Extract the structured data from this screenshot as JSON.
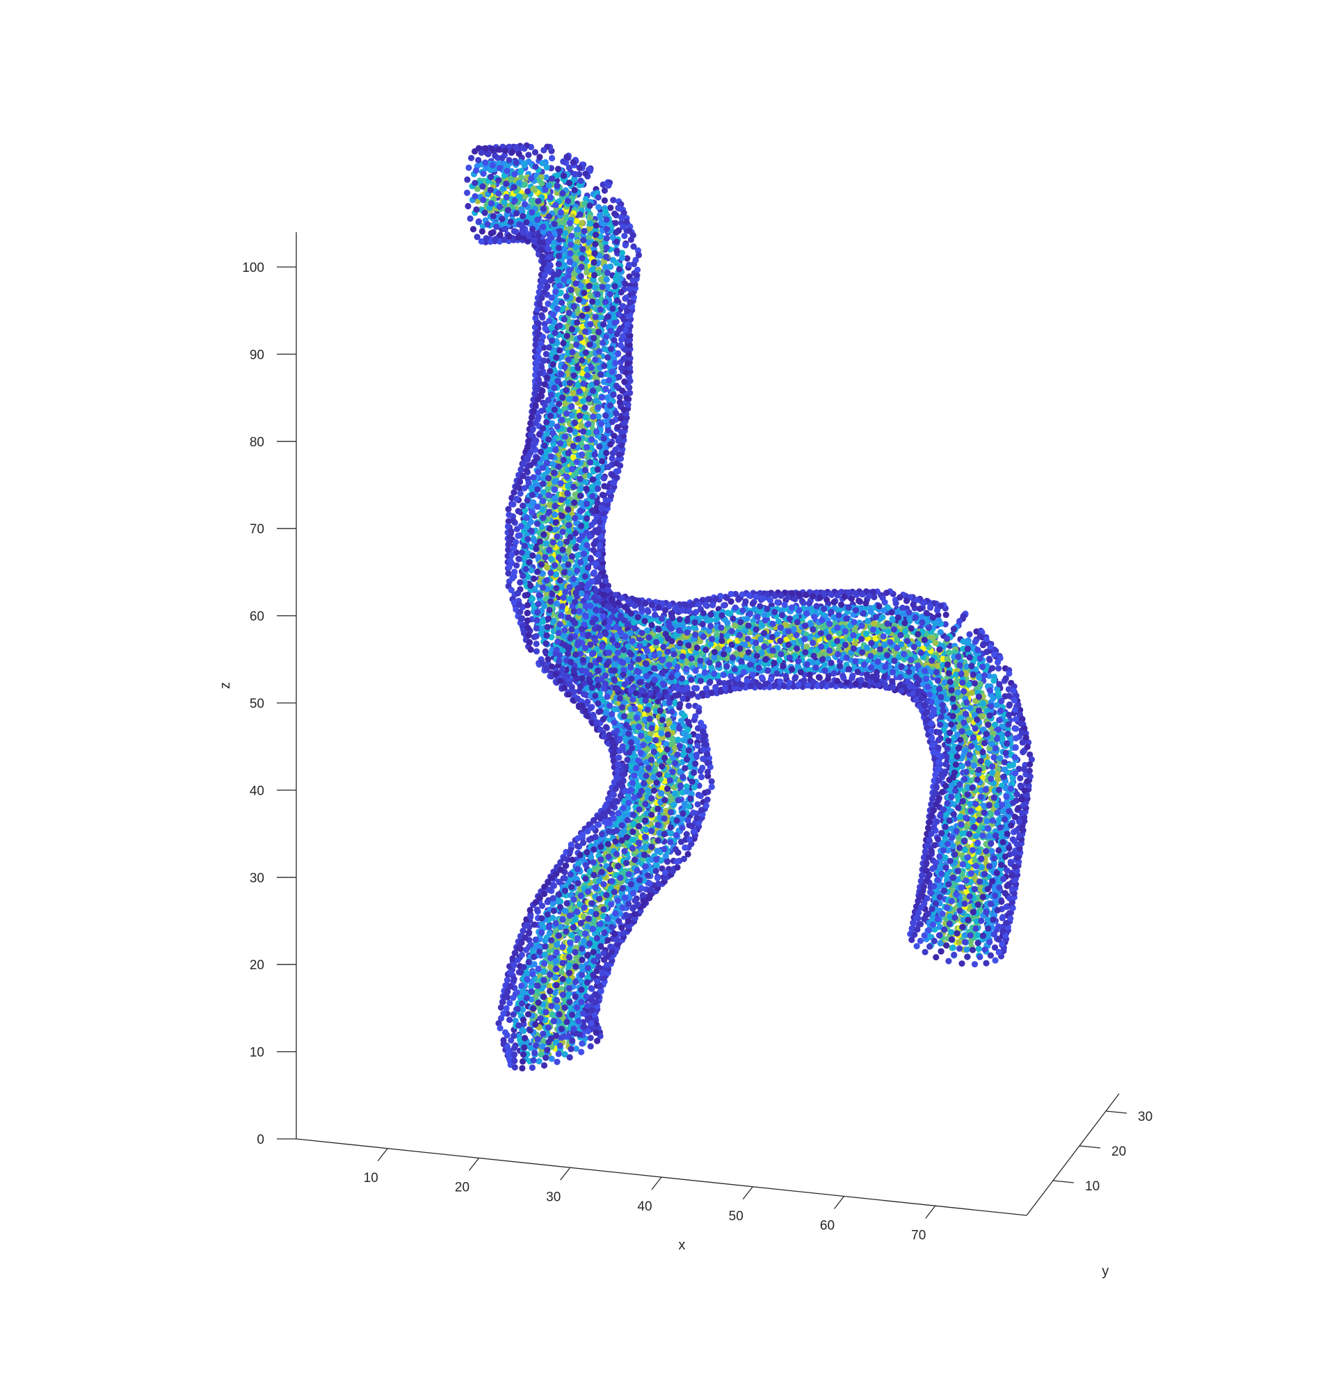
{
  "chart_data": {
    "type": "scatter",
    "projection": "3d",
    "title": "",
    "xlabel": "x",
    "ylabel": "y",
    "zlabel": "z",
    "x_ticks": [
      10,
      20,
      30,
      40,
      50,
      60,
      70
    ],
    "y_ticks": [
      10,
      20,
      30
    ],
    "z_ticks": [
      0,
      10,
      20,
      30,
      40,
      50,
      60,
      70,
      80,
      90,
      100
    ],
    "xlim": [
      0,
      80
    ],
    "ylim": [
      0,
      35
    ],
    "zlim": [
      0,
      104
    ],
    "grid": false,
    "legend": "none",
    "colormap": [
      "#3e26a8",
      "#4353f0",
      "#2f86f9",
      "#15b6d2",
      "#3fc39b",
      "#c9c128",
      "#f9fb15"
    ],
    "tube_radius": 5,
    "branches": [
      {
        "name": "",
        "centerline": [
          [
            14,
            22,
            101
          ],
          [
            20,
            22,
            102
          ],
          [
            24,
            22,
            100
          ],
          [
            26,
            22,
            95
          ],
          [
            25,
            22,
            88
          ],
          [
            25,
            22,
            80
          ],
          [
            24,
            22,
            72
          ],
          [
            22,
            22,
            65
          ],
          [
            22,
            22,
            58
          ],
          [
            24,
            22,
            52
          ]
        ]
      },
      {
        "name": "",
        "centerline": [
          [
            24,
            22,
            52
          ],
          [
            30,
            22,
            51
          ],
          [
            36,
            22,
            51
          ],
          [
            42,
            22,
            53
          ],
          [
            50,
            22,
            54
          ],
          [
            58,
            22,
            55
          ],
          [
            64,
            22,
            54
          ],
          [
            67,
            22,
            50
          ],
          [
            69,
            22,
            42
          ],
          [
            68,
            22,
            34
          ],
          [
            67,
            22,
            26
          ],
          [
            66,
            22,
            21
          ]
        ]
      },
      {
        "name": "",
        "centerline": [
          [
            24,
            22,
            52
          ],
          [
            29,
            22,
            47
          ],
          [
            33,
            22,
            42
          ],
          [
            34,
            22,
            36
          ],
          [
            32,
            22,
            30
          ],
          [
            28,
            22,
            25
          ],
          [
            24,
            22,
            18
          ],
          [
            22,
            22,
            12
          ],
          [
            21,
            22,
            7
          ],
          [
            22,
            22,
            4
          ]
        ]
      }
    ]
  }
}
